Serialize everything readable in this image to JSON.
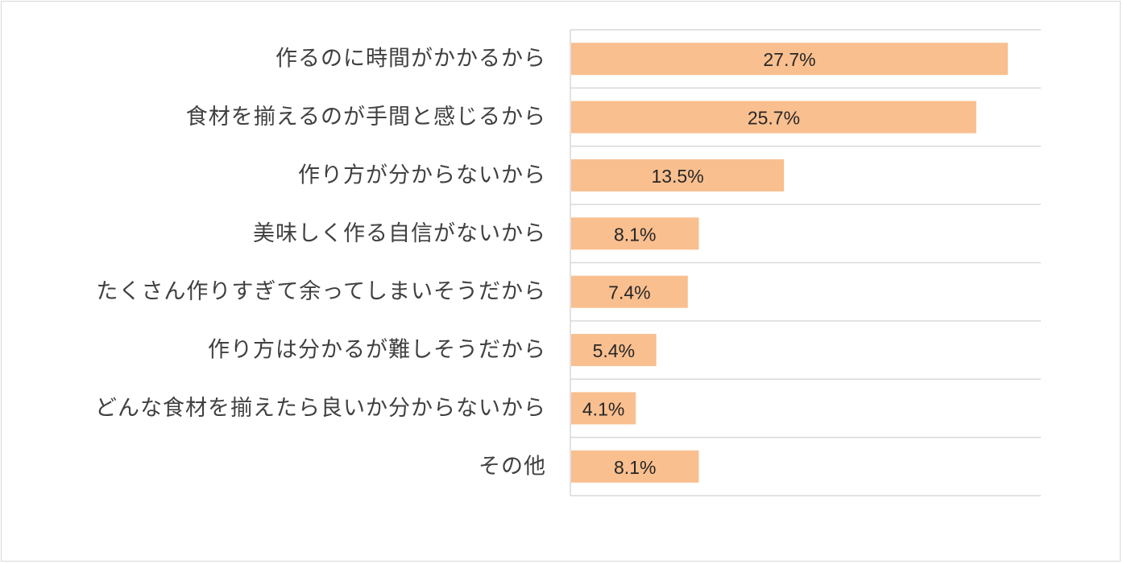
{
  "chart_data": {
    "type": "bar",
    "orientation": "horizontal",
    "categories": [
      "作るのに時間がかかるから",
      "食材を揃えるのが手間と感じるから",
      "作り方が分からないから",
      "美味しく作る自信がないから",
      "たくさん作りすぎて余ってしまいそうだから",
      "作り方は分かるが難しそうだから",
      "どんな食材を揃えたら良いか分からないから",
      "その他"
    ],
    "values": [
      27.7,
      25.7,
      13.5,
      8.1,
      7.4,
      5.4,
      4.1,
      8.1
    ],
    "data_labels": [
      "27.7%",
      "25.7%",
      "13.5%",
      "8.1%",
      "7.4%",
      "5.4%",
      "4.1%",
      "8.1%"
    ],
    "unit": "%",
    "xlim": [
      0,
      30
    ],
    "bar_color": "#f9bf8f",
    "gridlines": true,
    "legend": "none"
  }
}
